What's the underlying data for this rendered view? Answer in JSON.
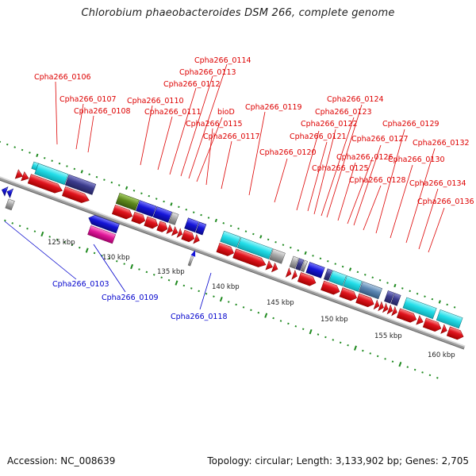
{
  "title": "Chlorobium phaeobacteroides DSM 266, complete genome",
  "footer": {
    "accession": "Accession: NC_008639",
    "summary": "Topology: circular; Length: 3,133,902 bp; Genes: 2,705"
  },
  "colors": {
    "forward_gene": "#e0141e",
    "reverse_gene": "#1515d8",
    "cds_cyan": "#22dde8",
    "cds_navy": "#3b3b8c",
    "cds_olive": "#5f8a1e",
    "cds_gray": "#a8a8a8",
    "cds_pink": "#e0189a",
    "label_forward": "#dd0000",
    "label_reverse": "#0000cc",
    "tick": "#1f8a1f"
  },
  "kbp_labels": [
    "125 kbp",
    "130 kbp",
    "135 kbp",
    "140 kbp",
    "145 kbp",
    "150 kbp",
    "155 kbp",
    "160 kbp"
  ],
  "forward_labels": [
    "Cpha266_0106",
    "Cpha266_0107",
    "Cpha266_0108",
    "Cpha266_0110",
    "Cpha266_0111",
    "Cpha266_0112",
    "Cpha266_0113",
    "Cpha266_0114",
    "bioD",
    "Cpha266_0115",
    "Cpha266_0117",
    "Cpha266_0119",
    "Cpha266_0120",
    "Cpha266_0121",
    "Cpha266_0122",
    "Cpha266_0123",
    "Cpha266_0124",
    "Cpha266_0125",
    "Cpha266_0126",
    "Cpha266_0127",
    "Cpha266_0128",
    "Cpha266_0129",
    "Cpha266_0130",
    "Cpha266_0132",
    "Cpha266_0134",
    "Cpha266_0136"
  ],
  "reverse_labels": [
    "Cpha266_0103",
    "Cpha266_0109",
    "Cpha266_0118"
  ]
}
